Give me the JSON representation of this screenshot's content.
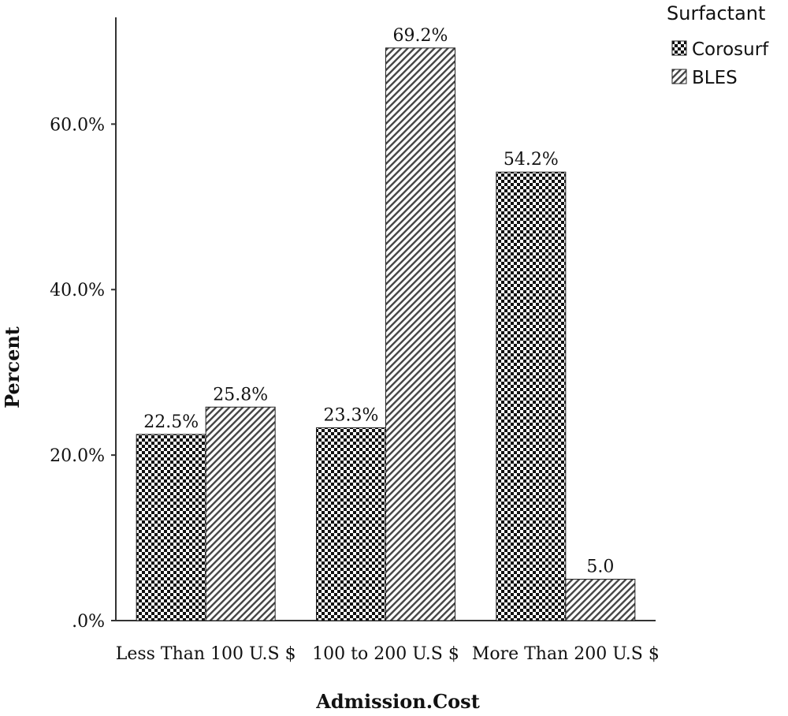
{
  "chart_data": {
    "type": "bar",
    "categories": [
      "Less Than 100 U.S $",
      "100 to 200 U.S $",
      "More Than 200 U.S $"
    ],
    "series": [
      {
        "name": "Corosurf",
        "values": [
          22.5,
          23.3,
          54.2
        ],
        "labels": [
          "22.5%",
          "23.3%",
          "54.2%"
        ],
        "pattern": "checker"
      },
      {
        "name": "BLES",
        "values": [
          25.8,
          69.2,
          5.0
        ],
        "labels": [
          "25.8%",
          "69.2%",
          "5.0"
        ],
        "pattern": "diagonal"
      }
    ],
    "xlabel": "Admission.Cost",
    "ylabel": "Percent",
    "ylim": [
      0,
      72.9
    ],
    "yticks": [
      0,
      20,
      40,
      60
    ],
    "ytick_labels": [
      ".0%",
      "20.0%",
      "40.0%",
      "60.0%"
    ],
    "legend": {
      "title": "Surfactant",
      "position": "top-right"
    },
    "grid": false,
    "colors": {
      "ink": "#111111",
      "background": "#ffffff"
    }
  }
}
